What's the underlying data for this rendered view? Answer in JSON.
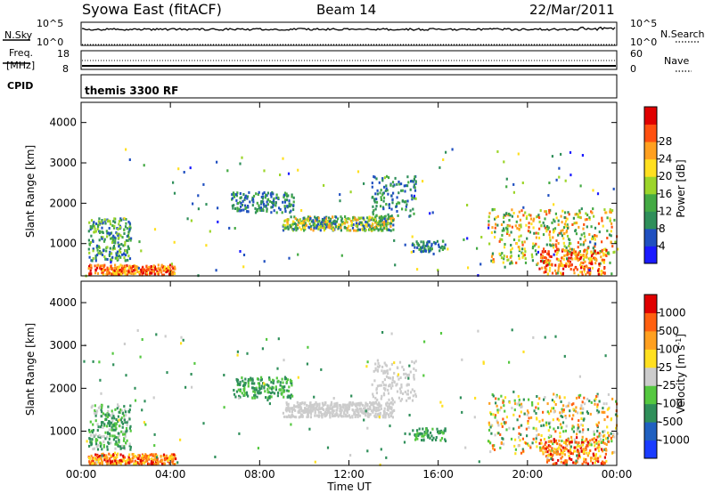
{
  "header": {
    "station": "Syowa East (fitACF)",
    "beam": "Beam 14",
    "date": "22/Mar/2011"
  },
  "top_panels": {
    "nsky": {
      "label": "N.Sky",
      "ticks": [
        "10^5",
        "10^0"
      ]
    },
    "nsearch": {
      "label": "N.Search",
      "ticks": [
        "10^5",
        "10^0"
      ]
    },
    "freq": {
      "label_lines": [
        "Freq.",
        "[MHz]"
      ],
      "ticks": [
        "18",
        "8"
      ]
    },
    "nave": {
      "label": "Nave",
      "ticks": [
        "60",
        "0"
      ]
    },
    "cpid": {
      "label": "CPID",
      "mode": "themis 3300 RF"
    }
  },
  "x_axis": {
    "label": "Time UT",
    "ticks": [
      "00:00",
      "04:00",
      "08:00",
      "12:00",
      "16:00",
      "20:00",
      "00:00"
    ]
  },
  "chart_data": [
    {
      "type": "heatmap",
      "name": "power",
      "ylabel": "Slant Range [km]",
      "yticks": [
        "1000",
        "2000",
        "3000",
        "4000"
      ],
      "ylim": [
        200,
        4500
      ],
      "xlim_hours": [
        0,
        24
      ],
      "colorbar": {
        "label": "Power [dB]",
        "ticks": [
          "4",
          "8",
          "12",
          "16",
          "20",
          "24",
          "28"
        ],
        "range": [
          0,
          30
        ],
        "colors": [
          "#1a1aff",
          "#2050c0",
          "#2f8f5a",
          "#44aa44",
          "#9cd52a",
          "#ffe020",
          "#ffa020",
          "#ff5010",
          "#e00000"
        ]
      }
    },
    {
      "type": "heatmap",
      "name": "velocity",
      "ylabel": "Slant Range [km]",
      "yticks": [
        "1000",
        "2000",
        "3000",
        "4000"
      ],
      "ylim": [
        200,
        4500
      ],
      "xlim_hours": [
        0,
        24
      ],
      "colorbar": {
        "label": "Velocity [m s",
        "label_sup": "-1",
        "ticks": [
          "1000",
          "500",
          "100",
          "25",
          "-25",
          "-100",
          "-500",
          "-1000"
        ],
        "colors": [
          "#1a3cff",
          "#2060c0",
          "#2f8f5a",
          "#55c840",
          "#cccccc",
          "#ffe020",
          "#ffa020",
          "#ff6010",
          "#e00000"
        ]
      }
    }
  ]
}
